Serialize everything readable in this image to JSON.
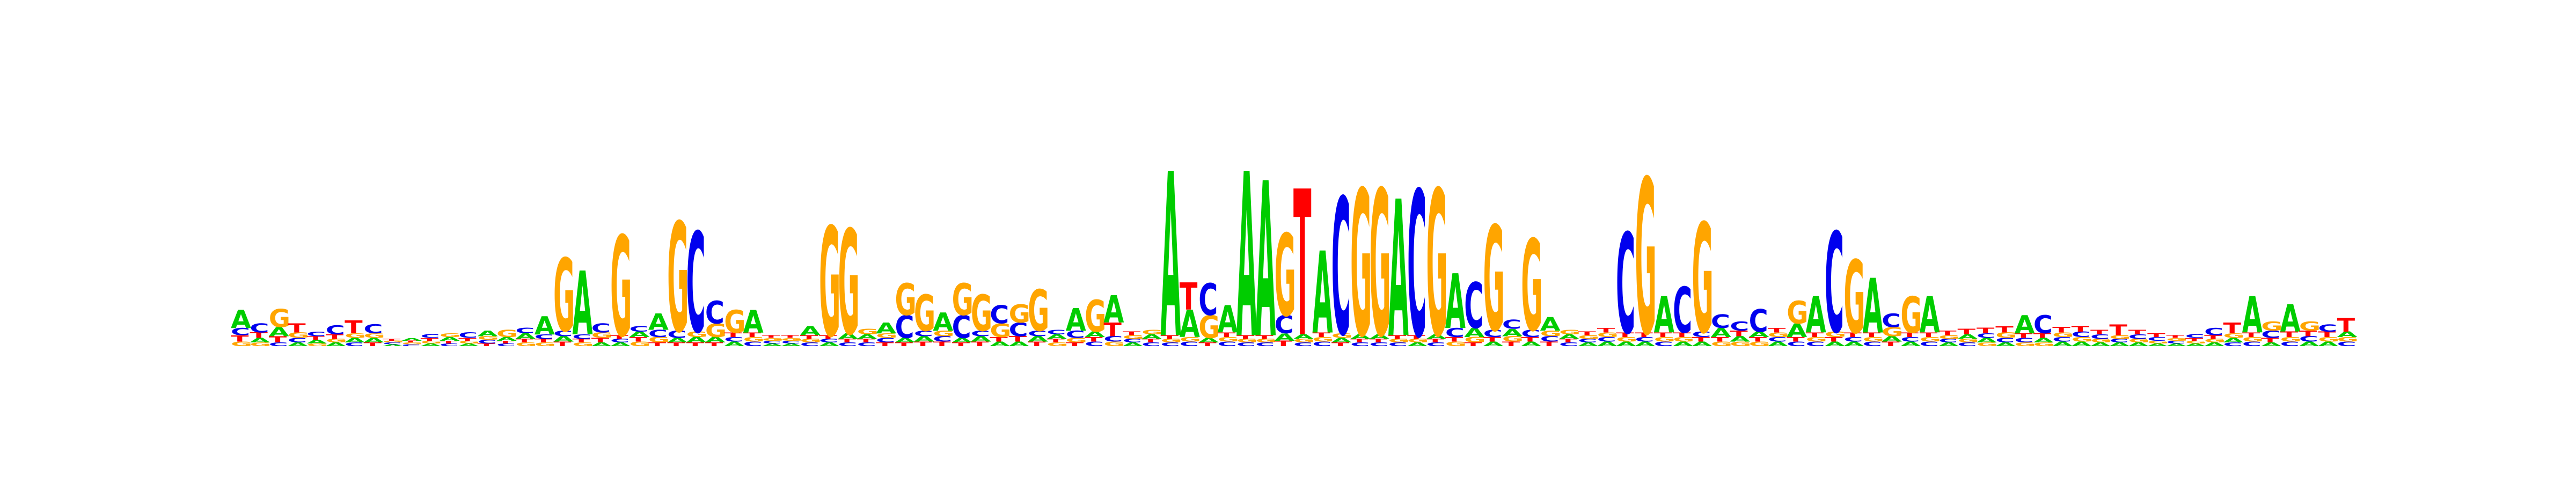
{
  "chart_data": {
    "type": "sequence-logo",
    "title": "",
    "xlabel": "",
    "ylabel": "",
    "colors": {
      "A": "#00cc00",
      "C": "#0000ee",
      "G": "#ffa500",
      "T": "#ff0000"
    },
    "positions": [
      {
        "A": 0.2,
        "C": 0.08,
        "G": 0.05,
        "T": 0.07
      },
      {
        "A": 0.05,
        "C": 0.1,
        "G": 0.04,
        "T": 0.06
      },
      {
        "A": 0.1,
        "C": 0.04,
        "G": 0.2,
        "T": 0.07
      },
      {
        "A": 0.04,
        "C": 0.05,
        "G": 0.06,
        "T": 0.1
      },
      {
        "A": 0.04,
        "C": 0.05,
        "G": 0.03,
        "T": 0.04
      },
      {
        "A": 0.04,
        "C": 0.1,
        "G": 0.04,
        "T": 0.05
      },
      {
        "A": 0.05,
        "C": 0.04,
        "G": 0.05,
        "T": 0.14
      },
      {
        "A": 0.05,
        "C": 0.1,
        "G": 0.05,
        "T": 0.04
      },
      {
        "A": 0.02,
        "C": 0.02,
        "G": 0.02,
        "T": 0.02
      },
      {
        "A": 0.03,
        "C": 0.02,
        "G": 0.02,
        "T": 0.02
      },
      {
        "A": 0.03,
        "C": 0.04,
        "G": 0.03,
        "T": 0.03
      },
      {
        "A": 0.04,
        "C": 0.03,
        "G": 0.04,
        "T": 0.03
      },
      {
        "A": 0.03,
        "C": 0.06,
        "G": 0.03,
        "T": 0.03
      },
      {
        "A": 0.06,
        "C": 0.04,
        "G": 0.04,
        "T": 0.03
      },
      {
        "A": 0.04,
        "C": 0.03,
        "G": 0.08,
        "T": 0.03
      },
      {
        "A": 0.06,
        "C": 0.06,
        "G": 0.04,
        "T": 0.04
      },
      {
        "A": 0.2,
        "C": 0.05,
        "G": 0.04,
        "T": 0.04
      },
      {
        "A": 0.06,
        "C": 0.06,
        "G": 0.8,
        "T": 0.05
      },
      {
        "A": 0.7,
        "C": 0.05,
        "G": 0.04,
        "T": 0.04
      },
      {
        "A": 0.04,
        "C": 0.1,
        "G": 0.06,
        "T": 0.05
      },
      {
        "A": 0.04,
        "C": 0.04,
        "G": 1.1,
        "T": 0.04
      },
      {
        "A": 0.06,
        "C": 0.06,
        "G": 0.05,
        "T": 0.05
      },
      {
        "A": 0.18,
        "C": 0.08,
        "G": 0.06,
        "T": 0.04
      },
      {
        "A": 0.05,
        "C": 0.08,
        "G": 1.2,
        "T": 0.04
      },
      {
        "A": 0.06,
        "C": 1.1,
        "G": 0.06,
        "T": 0.04
      },
      {
        "A": 0.06,
        "C": 0.25,
        "G": 0.15,
        "T": 0.04
      },
      {
        "A": 0.05,
        "C": 0.05,
        "G": 0.25,
        "T": 0.05
      },
      {
        "A": 0.25,
        "C": 0.05,
        "G": 0.05,
        "T": 0.05
      },
      {
        "A": 0.03,
        "C": 0.03,
        "G": 0.03,
        "T": 0.03
      },
      {
        "A": 0.03,
        "C": 0.03,
        "G": 0.03,
        "T": 0.03
      },
      {
        "A": 0.1,
        "C": 0.04,
        "G": 0.04,
        "T": 0.04
      },
      {
        "A": 0.04,
        "C": 0.04,
        "G": 1.2,
        "T": 0.04
      },
      {
        "A": 0.06,
        "C": 0.04,
        "G": 1.15,
        "T": 0.04
      },
      {
        "A": 0.05,
        "C": 0.04,
        "G": 0.06,
        "T": 0.04
      },
      {
        "A": 0.12,
        "C": 0.05,
        "G": 0.05,
        "T": 0.04
      },
      {
        "A": 0.05,
        "C": 0.25,
        "G": 0.35,
        "T": 0.04
      },
      {
        "A": 0.06,
        "C": 0.06,
        "G": 0.4,
        "T": 0.05
      },
      {
        "A": 0.2,
        "C": 0.06,
        "G": 0.06,
        "T": 0.05
      },
      {
        "A": 0.05,
        "C": 0.25,
        "G": 0.35,
        "T": 0.04
      },
      {
        "A": 0.06,
        "C": 0.06,
        "G": 0.4,
        "T": 0.05
      },
      {
        "A": 0.05,
        "C": 0.2,
        "G": 0.15,
        "T": 0.05
      },
      {
        "A": 0.05,
        "C": 0.15,
        "G": 0.2,
        "T": 0.06
      },
      {
        "A": 0.06,
        "C": 0.06,
        "G": 0.45,
        "T": 0.05
      },
      {
        "A": 0.05,
        "C": 0.05,
        "G": 0.04,
        "T": 0.04
      },
      {
        "A": 0.25,
        "C": 0.08,
        "G": 0.05,
        "T": 0.04
      },
      {
        "A": 0.06,
        "C": 0.05,
        "G": 0.35,
        "T": 0.05
      },
      {
        "A": 0.3,
        "C": 0.06,
        "G": 0.05,
        "T": 0.15
      },
      {
        "A": 0.04,
        "C": 0.04,
        "G": 0.04,
        "T": 0.04
      },
      {
        "A": 0.05,
        "C": 0.04,
        "G": 0.05,
        "T": 0.04
      },
      {
        "A": 1.8,
        "C": 0.04,
        "G": 0.04,
        "T": 0.04
      },
      {
        "A": 0.3,
        "C": 0.05,
        "G": 0.05,
        "T": 0.3
      },
      {
        "A": 0.05,
        "C": 0.35,
        "G": 0.25,
        "T": 0.04
      },
      {
        "A": 0.3,
        "C": 0.05,
        "G": 0.05,
        "T": 0.05
      },
      {
        "A": 1.8,
        "C": 0.04,
        "G": 0.04,
        "T": 0.04
      },
      {
        "A": 1.7,
        "C": 0.04,
        "G": 0.04,
        "T": 0.04
      },
      {
        "A": 0.08,
        "C": 0.2,
        "G": 0.9,
        "T": 0.06
      },
      {
        "A": 0.05,
        "C": 0.04,
        "G": 0.04,
        "T": 1.6
      },
      {
        "A": 0.9,
        "C": 0.05,
        "G": 0.05,
        "T": 0.05
      },
      {
        "A": 0.05,
        "C": 1.5,
        "G": 0.05,
        "T": 0.04
      },
      {
        "A": 0.05,
        "C": 0.04,
        "G": 1.6,
        "T": 0.04
      },
      {
        "A": 0.05,
        "C": 0.04,
        "G": 1.6,
        "T": 0.04
      },
      {
        "A": 1.5,
        "C": 0.04,
        "G": 0.04,
        "T": 0.04
      },
      {
        "A": 0.04,
        "C": 1.6,
        "G": 0.04,
        "T": 0.04
      },
      {
        "A": 0.05,
        "C": 0.04,
        "G": 1.6,
        "T": 0.04
      },
      {
        "A": 0.6,
        "C": 0.1,
        "G": 0.05,
        "T": 0.05
      },
      {
        "A": 0.1,
        "C": 0.5,
        "G": 0.06,
        "T": 0.04
      },
      {
        "A": 0.05,
        "C": 0.08,
        "G": 1.15,
        "T": 0.05
      },
      {
        "A": 0.08,
        "C": 0.1,
        "G": 0.06,
        "T": 0.05
      },
      {
        "A": 0.05,
        "C": 0.08,
        "G": 1.0,
        "T": 0.05
      },
      {
        "A": 0.15,
        "C": 0.06,
        "G": 0.06,
        "T": 0.05
      },
      {
        "A": 0.05,
        "C": 0.04,
        "G": 0.05,
        "T": 0.04
      },
      {
        "A": 0.04,
        "C": 0.04,
        "G": 0.04,
        "T": 0.04
      },
      {
        "A": 0.05,
        "C": 0.05,
        "G": 0.05,
        "T": 0.05
      },
      {
        "A": 0.05,
        "C": 1.1,
        "G": 0.05,
        "T": 0.05
      },
      {
        "A": 0.05,
        "C": 0.05,
        "G": 1.7,
        "T": 0.05
      },
      {
        "A": 0.4,
        "C": 0.05,
        "G": 0.05,
        "T": 0.05
      },
      {
        "A": 0.05,
        "C": 0.5,
        "G": 0.05,
        "T": 0.05
      },
      {
        "A": 0.05,
        "C": 0.06,
        "G": 1.2,
        "T": 0.05
      },
      {
        "A": 0.1,
        "C": 0.15,
        "G": 0.05,
        "T": 0.05
      },
      {
        "A": 0.06,
        "C": 0.1,
        "G": 0.05,
        "T": 0.06
      },
      {
        "A": 0.06,
        "C": 0.25,
        "G": 0.05,
        "T": 0.05
      },
      {
        "A": 0.05,
        "C": 0.05,
        "G": 0.05,
        "T": 0.05
      },
      {
        "A": 0.15,
        "C": 0.05,
        "G": 0.25,
        "T": 0.05
      },
      {
        "A": 0.4,
        "C": 0.05,
        "G": 0.05,
        "T": 0.05
      },
      {
        "A": 0.05,
        "C": 1.1,
        "G": 0.06,
        "T": 0.05
      },
      {
        "A": 0.05,
        "C": 0.05,
        "G": 0.8,
        "T": 0.05
      },
      {
        "A": 0.6,
        "C": 0.05,
        "G": 0.05,
        "T": 0.05
      },
      {
        "A": 0.06,
        "C": 0.15,
        "G": 0.1,
        "T": 0.05
      },
      {
        "A": 0.05,
        "C": 0.05,
        "G": 0.4,
        "T": 0.05
      },
      {
        "A": 0.4,
        "C": 0.05,
        "G": 0.05,
        "T": 0.05
      },
      {
        "A": 0.04,
        "C": 0.04,
        "G": 0.04,
        "T": 0.05
      },
      {
        "A": 0.05,
        "C": 0.04,
        "G": 0.04,
        "T": 0.06
      },
      {
        "A": 0.05,
        "C": 0.05,
        "G": 0.04,
        "T": 0.06
      },
      {
        "A": 0.04,
        "C": 0.05,
        "G": 0.06,
        "T": 0.07
      },
      {
        "A": 0.2,
        "C": 0.05,
        "G": 0.04,
        "T": 0.05
      },
      {
        "A": 0.05,
        "C": 0.2,
        "G": 0.04,
        "T": 0.05
      },
      {
        "A": 0.05,
        "C": 0.05,
        "G": 0.05,
        "T": 0.06
      },
      {
        "A": 0.05,
        "C": 0.06,
        "G": 0.05,
        "T": 0.06
      },
      {
        "A": 0.04,
        "C": 0.05,
        "G": 0.04,
        "T": 0.05
      },
      {
        "A": 0.04,
        "C": 0.04,
        "G": 0.04,
        "T": 0.12
      },
      {
        "A": 0.04,
        "C": 0.05,
        "G": 0.04,
        "T": 0.05
      },
      {
        "A": 0.03,
        "C": 0.04,
        "G": 0.03,
        "T": 0.04
      },
      {
        "A": 0.03,
        "C": 0.03,
        "G": 0.03,
        "T": 0.03
      },
      {
        "A": 0.03,
        "C": 0.04,
        "G": 0.03,
        "T": 0.03
      },
      {
        "A": 0.04,
        "C": 0.08,
        "G": 0.04,
        "T": 0.04
      },
      {
        "A": 0.05,
        "C": 0.04,
        "G": 0.05,
        "T": 0.12
      },
      {
        "A": 0.4,
        "C": 0.05,
        "G": 0.05,
        "T": 0.05
      },
      {
        "A": 0.04,
        "C": 0.08,
        "G": 0.1,
        "T": 0.05
      },
      {
        "A": 0.3,
        "C": 0.05,
        "G": 0.05,
        "T": 0.06
      },
      {
        "A": 0.05,
        "C": 0.06,
        "G": 0.1,
        "T": 0.06
      },
      {
        "A": 0.05,
        "C": 0.08,
        "G": 0.05,
        "T": 0.06
      },
      {
        "A": 0.06,
        "C": 0.05,
        "G": 0.05,
        "T": 0.15
      }
    ]
  }
}
